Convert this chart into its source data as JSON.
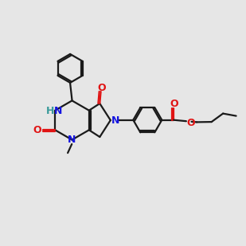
{
  "background_color": "#e6e6e6",
  "bond_color": "#1a1a1a",
  "n_color": "#1414e0",
  "o_color": "#e01414",
  "h_color": "#3a9a9a",
  "line_width": 1.6,
  "figsize": [
    3.0,
    3.0
  ],
  "dpi": 100,
  "xlim": [
    0,
    10
  ],
  "ylim": [
    0,
    10
  ]
}
